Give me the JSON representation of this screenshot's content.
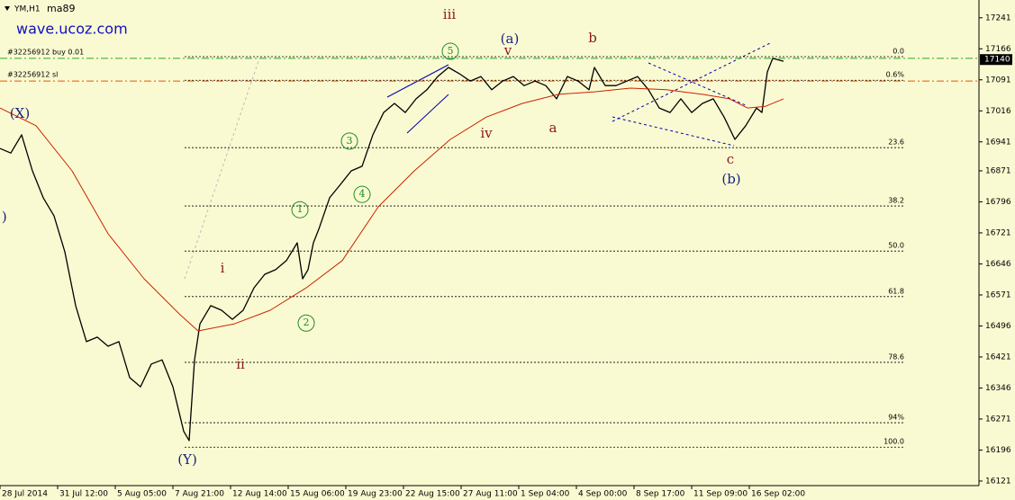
{
  "chart_data": {
    "type": "line",
    "title": "YM,H1",
    "indicator": "ma89",
    "watermark": "wave.ucoz.com",
    "xlim": [
      0,
      271.75
    ],
    "ylim": [
      16110,
      17284
    ],
    "xticks": [
      {
        "value": 0,
        "label": "28 Jul 2014"
      },
      {
        "value": 16,
        "label": "31 Jul 12:00"
      },
      {
        "value": 32,
        "label": "5 Aug 05:00"
      },
      {
        "value": 48,
        "label": "7 Aug 21:00"
      },
      {
        "value": 64,
        "label": "12 Aug 14:00"
      },
      {
        "value": 80,
        "label": "15 Aug 06:00"
      },
      {
        "value": 96,
        "label": "19 Aug 23:00"
      },
      {
        "value": 112,
        "label": "22 Aug 15:00"
      },
      {
        "value": 128,
        "label": "27 Aug 11:00"
      },
      {
        "value": 144,
        "label": "1 Sep 04:00"
      },
      {
        "value": 160,
        "label": "4 Sep 00:00"
      },
      {
        "value": 176,
        "label": "8 Sep 17:00"
      },
      {
        "value": 192,
        "label": "11 Sep 09:00"
      },
      {
        "value": 208,
        "label": "16 Sep 02:00"
      }
    ],
    "yticks": [
      17241,
      17166,
      17091,
      17016,
      16941,
      16871,
      16796,
      16721,
      16646,
      16571,
      16496,
      16421,
      16346,
      16271,
      16196,
      16121
    ],
    "series": [
      {
        "name": "YM,H1",
        "color": "#000000",
        "x": [
          0,
          3,
          6,
          9,
          12,
          15,
          18,
          21,
          24,
          27,
          30,
          33,
          36,
          39,
          42,
          45,
          48,
          51,
          52.5,
          54,
          55.5,
          58.5,
          61.5,
          64.5,
          67.5,
          70.5,
          73.5,
          76.5,
          79.5,
          82.5,
          84,
          85.5,
          87,
          88.5,
          91.5,
          94.5,
          97.5,
          100.5,
          103.5,
          106.5,
          109.5,
          112.5,
          115.5,
          118.5,
          121.5,
          124.5,
          127.5,
          130.5,
          133.5,
          136.5,
          139.5,
          142.5,
          145.5,
          148.5,
          151.5,
          154.5,
          157.5,
          160.5,
          163.5,
          165,
          168,
          171,
          174,
          177,
          180,
          183,
          186,
          189,
          192,
          195,
          198,
          201,
          204,
          207,
          210,
          211.5,
          213,
          214.5,
          217.5
        ],
        "values": [
          16925,
          16914,
          16958,
          16871,
          16806,
          16762,
          16675,
          16545,
          16458,
          16469,
          16447,
          16458,
          16371,
          16349,
          16404,
          16414,
          16349,
          16241,
          16219,
          16414,
          16501,
          16545,
          16534,
          16512,
          16534,
          16588,
          16621,
          16632,
          16654,
          16697,
          16610,
          16632,
          16697,
          16730,
          16806,
          16838,
          16871,
          16882,
          16958,
          17012,
          17034,
          17012,
          17045,
          17067,
          17099,
          17121,
          17106,
          17088,
          17099,
          17067,
          17088,
          17099,
          17077,
          17088,
          17077,
          17045,
          17099,
          17088,
          17067,
          17121,
          17077,
          17077,
          17088,
          17099,
          17067,
          17023,
          17012,
          17045,
          17012,
          17034,
          17045,
          17001,
          16947,
          16980,
          17023,
          17012,
          17110,
          17143,
          17136
        ]
      },
      {
        "name": "ma89",
        "color": "#cc2200",
        "x": [
          0,
          10,
          20,
          30,
          40,
          50,
          55,
          65,
          75,
          85,
          95,
          105,
          115,
          125,
          135,
          145,
          155,
          165,
          175,
          185,
          195,
          202.5,
          207.5,
          212.5,
          217.5
        ],
        "values": [
          17023,
          16980,
          16871,
          16719,
          16610,
          16523,
          16484,
          16501,
          16534,
          16588,
          16654,
          16784,
          16871,
          16947,
          17001,
          17034,
          17056,
          17062,
          17071,
          17067,
          17056,
          17045,
          17023,
          17027,
          17045
        ]
      }
    ],
    "last_price": 17140,
    "order_lines": [
      {
        "label": "#32256912 buy 0.01",
        "value": 17143,
        "color": "#22aa22"
      },
      {
        "label": "#32256912 sl",
        "value": 17088,
        "color": "#ee5500"
      }
    ],
    "fib_levels": [
      {
        "label": "0.0",
        "value": 17147
      },
      {
        "label": "0.6%",
        "value": 17090
      },
      {
        "label": "23.6",
        "value": 16927
      },
      {
        "label": "38.2",
        "value": 16786
      },
      {
        "label": "50.0",
        "value": 16677
      },
      {
        "label": "61.8",
        "value": 16567
      },
      {
        "label": "78.6",
        "value": 16408
      },
      {
        "label": "94%",
        "value": 16262
      },
      {
        "label": "100.0",
        "value": 16203
      }
    ],
    "annotations": [
      {
        "text": "(X)",
        "x": 5.5,
        "y": 17008,
        "color": "#1a237e"
      },
      {
        "text": ")",
        "x": 1.2,
        "y": 16758,
        "color": "#1a237e"
      },
      {
        "text": "(Y)",
        "x": 52,
        "y": 16171,
        "color": "#1a237e"
      },
      {
        "text": "(a)",
        "x": 141.5,
        "y": 17188,
        "color": "#1a237e"
      },
      {
        "text": "(b)",
        "x": 203,
        "y": 16849,
        "color": "#1a237e"
      },
      {
        "text": "i",
        "x": 61.75,
        "y": 16634,
        "color": "#8b1a1a"
      },
      {
        "text": "ii",
        "x": 66.75,
        "y": 16401,
        "color": "#8b1a1a"
      },
      {
        "text": "iii",
        "x": 124.75,
        "y": 17247,
        "color": "#8b1a1a"
      },
      {
        "text": "iv",
        "x": 135,
        "y": 16960,
        "color": "#8b1a1a"
      },
      {
        "text": "v",
        "x": 141,
        "y": 17160,
        "color": "#8b1a1a"
      },
      {
        "text": "a",
        "x": 153.5,
        "y": 16973,
        "color": "#8b1a1a"
      },
      {
        "text": "b",
        "x": 164.5,
        "y": 17190,
        "color": "#8b1a1a"
      },
      {
        "text": "c",
        "x": 202.75,
        "y": 16897,
        "color": "#8b1a1a"
      },
      {
        "text": "1",
        "x": 83.25,
        "y": 16777,
        "color": "#228b22",
        "circled": true
      },
      {
        "text": "2",
        "x": 85,
        "y": 16503,
        "color": "#228b22",
        "circled": true
      },
      {
        "text": "3",
        "x": 97,
        "y": 16943,
        "color": "#228b22",
        "circled": true
      },
      {
        "text": "4",
        "x": 100.5,
        "y": 16814,
        "color": "#228b22",
        "circled": true
      },
      {
        "text": "5",
        "x": 125,
        "y": 17160,
        "color": "#228b22",
        "circled": true
      }
    ]
  }
}
